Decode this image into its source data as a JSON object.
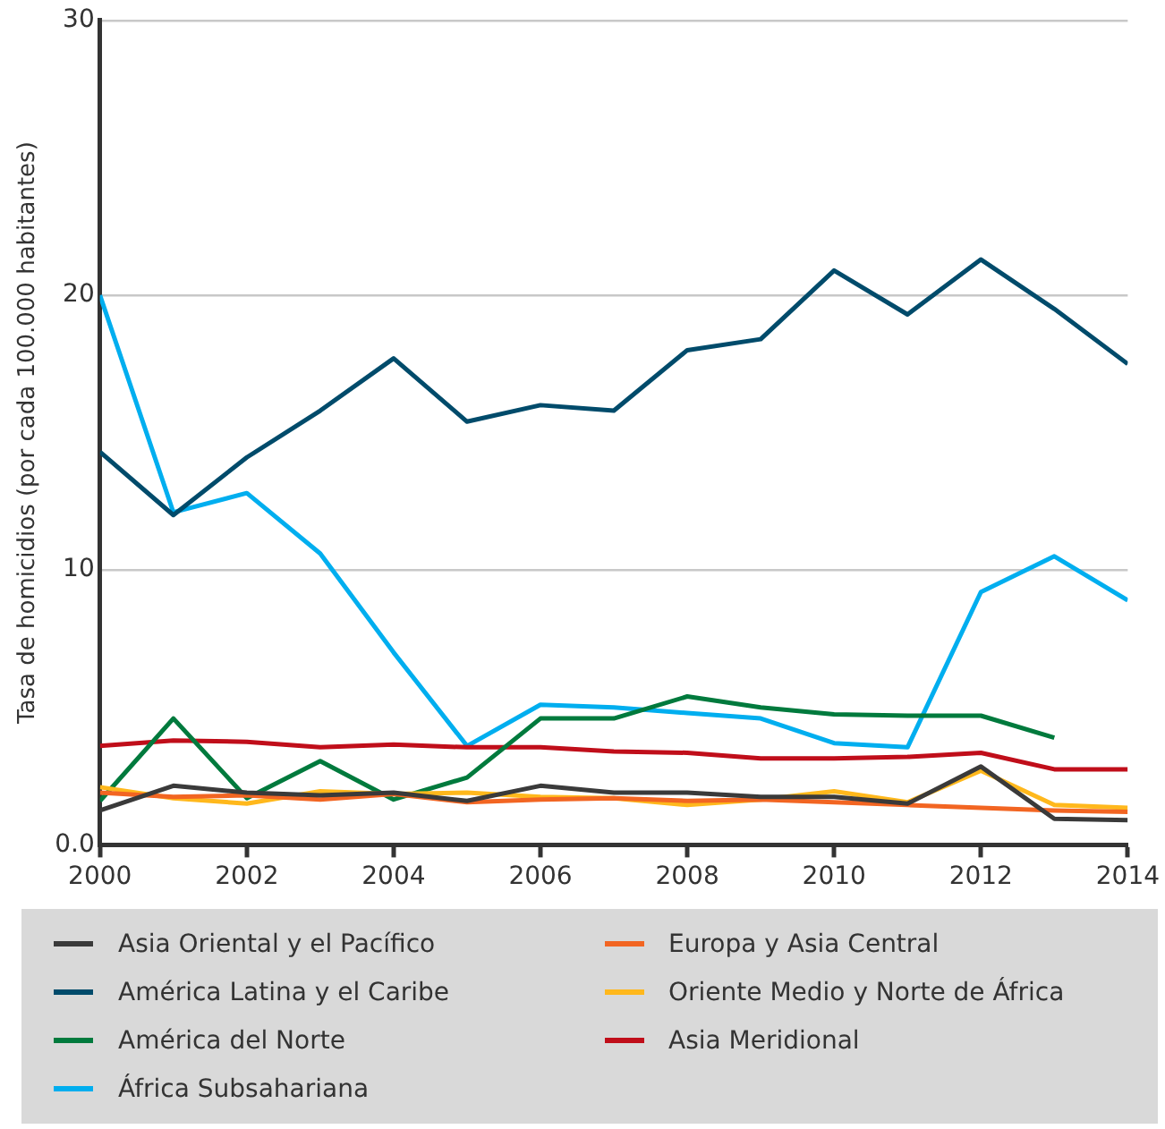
{
  "chart_data": {
    "type": "line",
    "ylabel": "Tasa de homicidios (por cada 100.000 habitantes)",
    "x": [
      2000,
      2001,
      2002,
      2003,
      2004,
      2005,
      2006,
      2007,
      2008,
      2009,
      2010,
      2011,
      2012,
      2013,
      2014
    ],
    "xlim": [
      2000,
      2014
    ],
    "xticks": [
      2000,
      2002,
      2004,
      2006,
      2008,
      2010,
      2012,
      2014
    ],
    "ylim": [
      0,
      30
    ],
    "yticks": [
      {
        "value": 0,
        "label": "0.0"
      },
      10,
      20,
      30
    ],
    "grid": "y",
    "legend": "bottom",
    "marker": "none",
    "line_style": "solid",
    "series": [
      {
        "name": "Asia Oriental y el Pacífico",
        "color": "#3a3a3a",
        "values": [
          1.25,
          2.15,
          1.9,
          1.8,
          1.9,
          1.6,
          2.15,
          1.9,
          1.9,
          1.75,
          1.75,
          1.5,
          2.85,
          0.95,
          0.9
        ]
      },
      {
        "name": "Europa y Asia Central",
        "color": "#f26522",
        "values": [
          1.9,
          1.75,
          1.8,
          1.65,
          1.85,
          1.55,
          1.65,
          1.7,
          1.6,
          1.65,
          1.55,
          1.45,
          1.35,
          1.25,
          1.2
        ]
      },
      {
        "name": "América Latina y el Caribe",
        "color": "#004b6b",
        "values": [
          14.3,
          12.0,
          14.1,
          15.8,
          17.7,
          15.4,
          16.0,
          15.8,
          18.0,
          18.4,
          20.9,
          19.3,
          21.3,
          19.5,
          17.5
        ]
      },
      {
        "name": "Oriente Medio y Norte de África",
        "color": "#ffb81c",
        "values": [
          2.1,
          1.7,
          1.5,
          1.95,
          1.85,
          1.9,
          1.75,
          1.7,
          1.45,
          1.65,
          1.95,
          1.55,
          2.7,
          1.45,
          1.35
        ]
      },
      {
        "name": "América del Norte",
        "color": "#007a3d",
        "values": [
          1.6,
          4.6,
          1.7,
          3.05,
          1.65,
          2.45,
          4.6,
          4.6,
          5.4,
          5.0,
          4.75,
          4.7,
          4.7,
          3.9,
          null
        ]
      },
      {
        "name": "Asia Meridional",
        "color": "#c00e1a",
        "values": [
          3.6,
          3.8,
          3.75,
          3.55,
          3.65,
          3.55,
          3.55,
          3.4,
          3.35,
          3.15,
          3.15,
          3.2,
          3.35,
          2.75,
          2.75
        ]
      },
      {
        "name": "África Subsahariana",
        "color": "#00aeef",
        "values": [
          20.0,
          12.1,
          12.8,
          10.6,
          7.0,
          3.6,
          5.1,
          5.0,
          4.8,
          4.6,
          3.7,
          3.55,
          9.2,
          10.5,
          8.9
        ]
      }
    ]
  }
}
